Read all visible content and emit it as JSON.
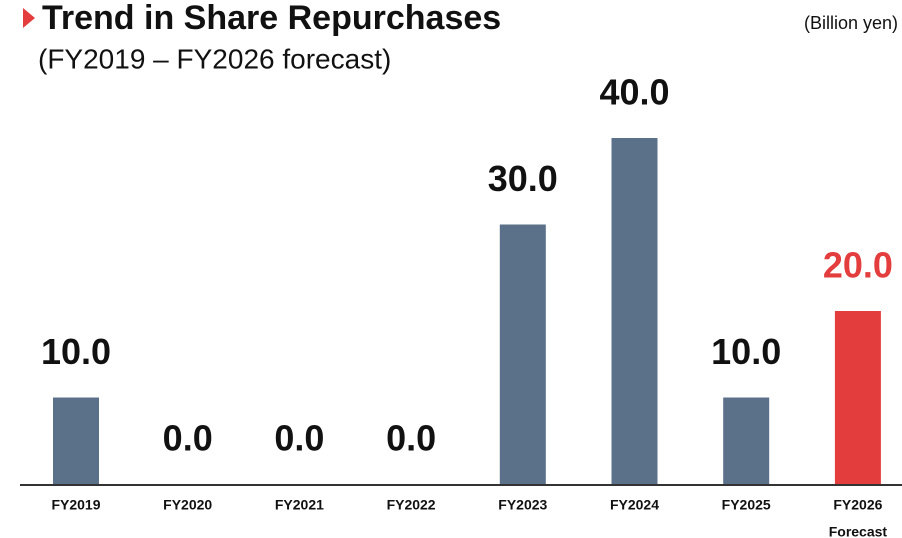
{
  "chart_data": {
    "type": "bar",
    "title": "Trend in Share Repurchases",
    "subtitle": "(FY2019 – FY2026 forecast)",
    "unit": "(Billion yen)",
    "categories": [
      "FY2019",
      "FY2020",
      "FY2021",
      "FY2022",
      "FY2023",
      "FY2024",
      "FY2025",
      "FY2026"
    ],
    "category_note": "Forecast",
    "values": [
      10,
      0,
      0,
      0,
      30,
      40,
      10,
      20
    ],
    "value_labels": [
      "10.0",
      "0.0",
      "0.0",
      "0.0",
      "30.0",
      "40.0",
      "10.0",
      "20.0"
    ],
    "colors": [
      "#5b7089",
      "#5b7089",
      "#5b7089",
      "#5b7089",
      "#5b7089",
      "#5b7089",
      "#5b7089",
      "#e43d3d"
    ],
    "label_colors": [
      "#111111",
      "#111111",
      "#111111",
      "#111111",
      "#111111",
      "#111111",
      "#111111",
      "#e43d3d"
    ],
    "ylim": [
      0,
      40
    ]
  }
}
